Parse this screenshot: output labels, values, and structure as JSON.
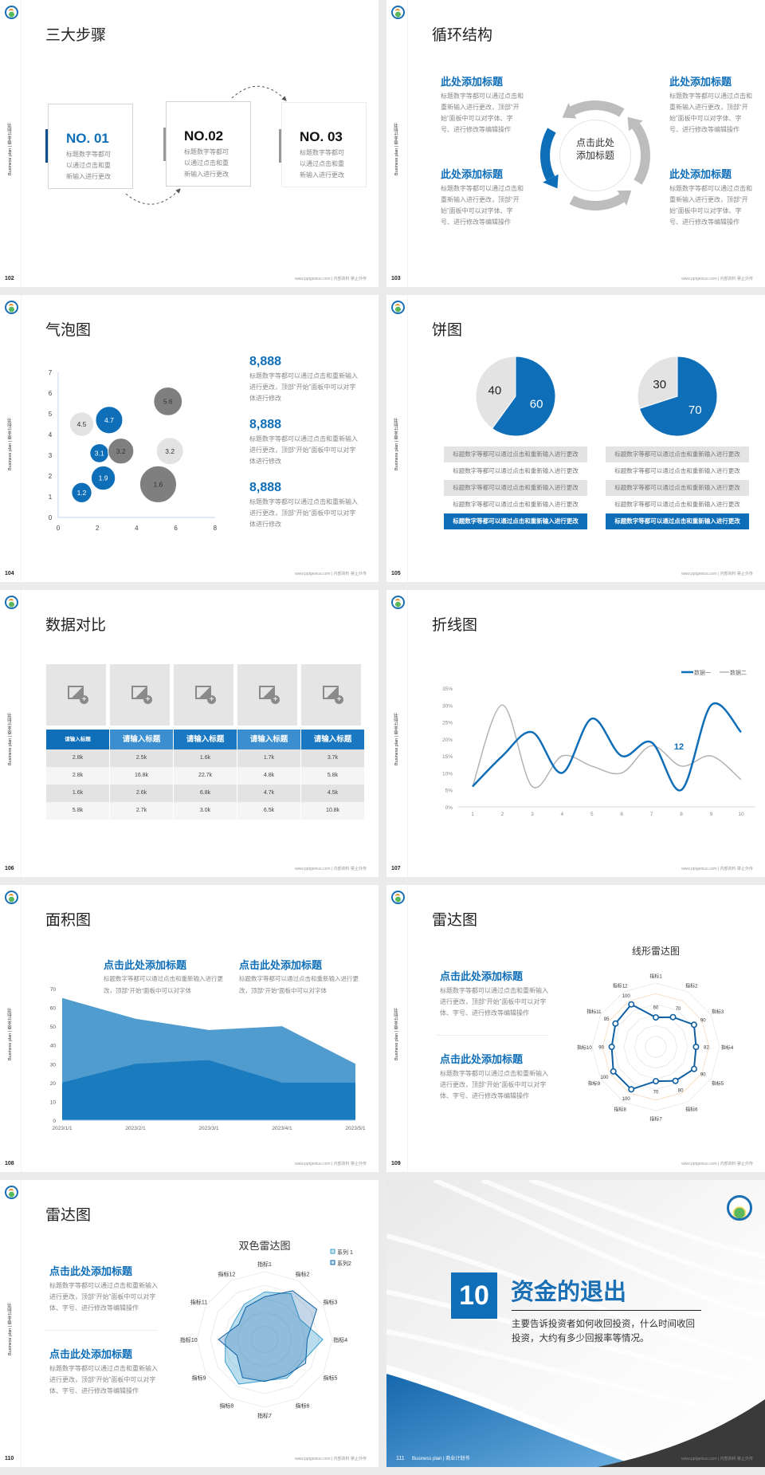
{
  "common": {
    "side_label": "Business plan | 商业计划书",
    "footer": "www.pptgenius.com | 内部资料 禁止外传"
  },
  "colors": {
    "blue": "#0e6eb8",
    "light_blue": "#4f9ccc",
    "gray": "#bdbdbd",
    "light_gray": "#e3e3e3",
    "dark_gray": "#7f7f7f"
  },
  "slides": [
    {
      "page": "102",
      "title": "三大步骤",
      "steps": [
        {
          "label": "NO. 01",
          "text": "标题数字等都可以通过点击和重新输入进行更改"
        },
        {
          "label": "NO.02",
          "text": "标题数字等都可以通过点击和重新输入进行更改"
        },
        {
          "label": "NO. 03",
          "text": "标题数字等都可以通过点击和重新输入进行更改"
        }
      ]
    },
    {
      "page": "103",
      "title": "循环结构",
      "center_text": "点击此处添加标题",
      "blocks": [
        {
          "heading": "此处添加标题",
          "text": "标题数字等都可以通过点击和重新输入进行更改，顶部“开始”面板中可以对字体、字号、进行修改等编辑操作"
        },
        {
          "heading": "此处添加标题",
          "text": "标题数字等都可以通过点击和重新输入进行更改，顶部“开始”面板中可以对字体、字号、进行修改等编辑操作"
        },
        {
          "heading": "此处添加标题",
          "text": "标题数字等都可以通过点击和重新输入进行更改，顶部“开始”面板中可以对字体、字号、进行修改等编辑操作"
        },
        {
          "heading": "此处添加标题",
          "text": "标题数字等都可以通过点击和重新输入进行更改，顶部“开始”面板中可以对字体、字号、进行修改等编辑操作"
        }
      ]
    },
    {
      "page": "104",
      "title": "气泡图",
      "stats": [
        {
          "value": "8,888",
          "text": "标题数字等都可以通过点击和重新输入进行更改，顶部“开始”面板中可以对字体进行修改"
        },
        {
          "value": "8,888",
          "text": "标题数字等都可以通过点击和重新输入进行更改，顶部“开始”面板中可以对字体进行修改"
        },
        {
          "value": "8,888",
          "text": "标题数字等都可以通过点击和重新输入进行更改，顶部“开始”面板中可以对字体进行修改"
        }
      ]
    },
    {
      "page": "105",
      "title": "饼图",
      "left_rows": [
        "标题数字等都可以通过点击和重新输入进行更改",
        "标题数字等都可以通过点击和重新输入进行更改",
        "标题数字等都可以通过点击和重新输入进行更改",
        "标题数字等都可以通过点击和重新输入进行更改",
        "标题数字等都可以通过点击和重新输入进行更改"
      ],
      "right_rows": [
        "标题数字等都可以通过点击和重新输入进行更改",
        "标题数字等都可以通过点击和重新输入进行更改",
        "标题数字等都可以通过点击和重新输入进行更改",
        "标题数字等都可以通过点击和重新输入进行更改",
        "标题数字等都可以通过点击和重新输入进行更改"
      ]
    },
    {
      "page": "106",
      "title": "数据对比",
      "headers": [
        "请输入标题",
        "请输入标题",
        "请输入标题",
        "请输入标题",
        "请输入标题"
      ],
      "rows": [
        [
          "2.8k",
          "2.5k",
          "1.6k",
          "1.7k",
          "3.7k"
        ],
        [
          "2.8k",
          "16.8k",
          "22.7k",
          "4.8k",
          "5.8k"
        ],
        [
          "1.6k",
          "2.6k",
          "6.8k",
          "4.7k",
          "4.5k"
        ],
        [
          "5.8k",
          "2.7k",
          "3.0k",
          "6.5k",
          "10.8k"
        ]
      ]
    },
    {
      "page": "107",
      "title": "折线图"
    },
    {
      "page": "108",
      "title": "面积图",
      "blocks": [
        {
          "heading": "点击此处添加标题",
          "text": "标题数字等都可以通过点击和重新输入进行更改，顶部“开始”面板中可以对字体"
        },
        {
          "heading": "点击此处添加标题",
          "text": "标题数字等都可以通过点击和重新输入进行更改，顶部“开始”面板中可以对字体"
        }
      ]
    },
    {
      "page": "109",
      "title": "雷达图",
      "blocks": [
        {
          "heading": "点击此处添加标题",
          "text": "标题数字等都可以通过点击和重新输入进行更改，顶部“开始”面板中可以对字体、字号、进行修改等编辑操作"
        },
        {
          "heading": "点击此处添加标题",
          "text": "标题数字等都可以通过点击和重新输入进行更改，顶部“开始”面板中可以对字体、字号、进行修改等编辑操作"
        }
      ]
    },
    {
      "page": "110",
      "title": "雷达图",
      "blocks": [
        {
          "heading": "点击此处添加标题",
          "text": "标题数字等都可以通过点击和重新输入进行更改，顶部“开始”面板中可以对字体、字号、进行修改等编辑操作"
        },
        {
          "heading": "点击此处添加标题",
          "text": "标题数字等都可以通过点击和重新输入进行更改，顶部“开始”面板中可以对字体、字号、进行修改等编辑操作"
        }
      ]
    },
    {
      "page": "111",
      "number": "10",
      "title": "资金的退出",
      "text": "主要告诉投资者如何收回投资，什么时间收回投资，大约有多少回报率等情况。",
      "footer_label": "Business plan | 商业计划书"
    }
  ],
  "chart_data": [
    {
      "type": "scatter",
      "subtype": "bubble",
      "xlim": [
        0,
        8
      ],
      "ylim": [
        0,
        7
      ],
      "x_ticks": [
        "0",
        "2",
        "4",
        "6",
        "8"
      ],
      "y_ticks": [
        "0",
        "1",
        "2",
        "3",
        "4",
        "5",
        "6",
        "7"
      ],
      "points": [
        {
          "x": 1.2,
          "y": 1.2,
          "size": 1.6,
          "label": "1.2",
          "color": "#0e6eb8"
        },
        {
          "x": 2.3,
          "y": 1.9,
          "size": 2.3,
          "label": "1.9",
          "color": "#0e6eb8"
        },
        {
          "x": 2.1,
          "y": 3.1,
          "size": 1.4,
          "label": "3.1",
          "color": "#0e6eb8"
        },
        {
          "x": 3.2,
          "y": 3.2,
          "size": 2.6,
          "label": "3.2",
          "color": "#7f7f7f"
        },
        {
          "x": 1.2,
          "y": 4.5,
          "size": 2.3,
          "label": "4.5",
          "color": "#e3e3e3"
        },
        {
          "x": 2.6,
          "y": 4.7,
          "size": 2.9,
          "label": "4.7",
          "color": "#0e6eb8"
        },
        {
          "x": 5.6,
          "y": 5.6,
          "size": 3.2,
          "label": "5.6",
          "color": "#7f7f7f"
        },
        {
          "x": 5.7,
          "y": 3.2,
          "size": 2.9,
          "label": "3.2",
          "color": "#e3e3e3"
        },
        {
          "x": 5.1,
          "y": 1.6,
          "size": 5.3,
          "label": "1.6",
          "color": "#7f7f7f"
        }
      ]
    },
    {
      "type": "pie",
      "values": [
        60,
        40
      ],
      "labels": [
        "60",
        "40"
      ],
      "colors": [
        "#0e6eb8",
        "#e3e3e3"
      ]
    },
    {
      "type": "pie",
      "values": [
        70,
        30
      ],
      "labels": [
        "70",
        "30"
      ],
      "colors": [
        "#0e6eb8",
        "#e3e3e3"
      ]
    },
    {
      "type": "line",
      "x": [
        "1",
        "2",
        "3",
        "4",
        "5",
        "6",
        "7",
        "8",
        "9",
        "10"
      ],
      "ylim": [
        0,
        35
      ],
      "y_ticks": [
        "0%",
        "5%",
        "10%",
        "15%",
        "20%",
        "25%",
        "30%",
        "35%"
      ],
      "legend": "top-right",
      "series": [
        {
          "name": "数据一",
          "values": [
            6,
            15,
            22,
            10,
            26,
            15,
            19,
            5,
            30,
            22
          ],
          "color": "#0e6eb8"
        },
        {
          "name": "数据二",
          "values": [
            6,
            30,
            6,
            15,
            12,
            10,
            18,
            12,
            15,
            8
          ],
          "color": "#b3b3b3"
        }
      ],
      "annotation": "12"
    },
    {
      "type": "area",
      "categories": [
        "2023/1/1",
        "2023/2/1",
        "2023/3/1",
        "2023/4/1",
        "2023/5/1"
      ],
      "ylim": [
        0,
        70
      ],
      "y_ticks": [
        "0",
        "10",
        "20",
        "30",
        "40",
        "50",
        "60",
        "70"
      ],
      "series": [
        {
          "values": [
            65,
            54,
            48,
            50,
            30
          ],
          "color": "#519ccf"
        },
        {
          "values": [
            20,
            30,
            32,
            20,
            20
          ],
          "color": "#1a7bbf"
        }
      ]
    },
    {
      "type": "radar",
      "title": "线形雷达图",
      "rlim": [
        0,
        130
      ],
      "categories": [
        "指标1",
        "指标2",
        "指标3",
        "指标4",
        "指标5",
        "指标6",
        "指标7",
        "指标8",
        "指标9",
        "指标10",
        "指标11",
        "指标12"
      ],
      "series": [
        {
          "values": [
            60,
            70,
            90,
            82,
            90,
            80,
            70,
            100,
            100,
            90,
            95,
            100
          ],
          "color": "#0e5fa3"
        }
      ],
      "data_labels": [
        "60",
        "70",
        "90",
        "82",
        "90",
        "80",
        "70",
        "100",
        "100",
        "90",
        "95",
        "100"
      ]
    },
    {
      "type": "radar",
      "title": "双色雷达图",
      "rlim": [
        0,
        100
      ],
      "legend": "top-right",
      "categories": [
        "指标1",
        "指标2",
        "指标3",
        "指标4",
        "指标5",
        "指标6",
        "指标7",
        "指标8",
        "指标9",
        "指标10",
        "指标11",
        "指标12"
      ],
      "series": [
        {
          "name": "系列 1",
          "values": [
            70,
            78,
            60,
            86,
            65,
            66,
            61,
            76,
            67,
            58,
            52,
            60
          ],
          "color": "#3a9fcf"
        },
        {
          "name": "系列2",
          "values": [
            63,
            83,
            89,
            63,
            70,
            62,
            62,
            65,
            47,
            68,
            44,
            55
          ],
          "color": "#0e5fa3"
        }
      ]
    }
  ]
}
